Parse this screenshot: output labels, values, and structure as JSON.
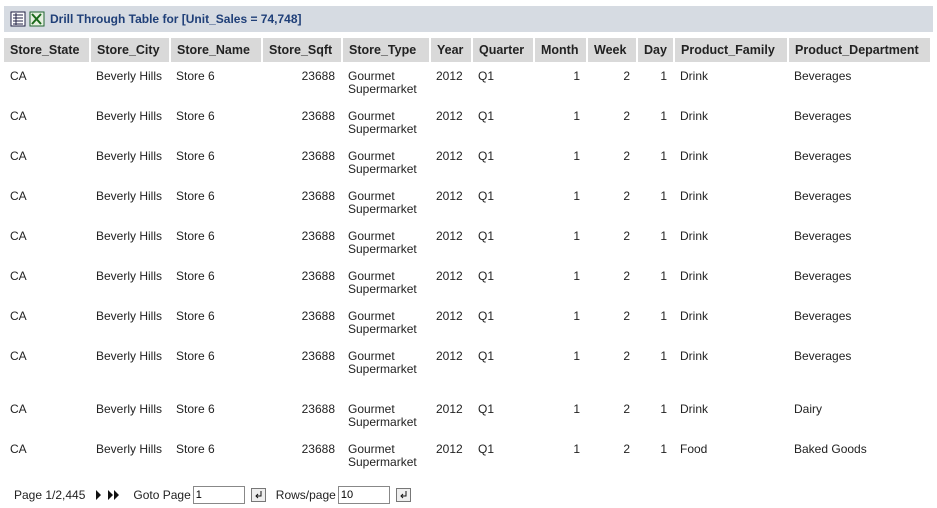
{
  "header": {
    "title": "Drill Through Table for [Unit_Sales = 74,748]"
  },
  "table": {
    "columns": [
      "Store_State",
      "Store_City",
      "Store_Name",
      "Store_Sqft",
      "Store_Type",
      "Year",
      "Quarter",
      "Month",
      "Week",
      "Day",
      "Product_Family",
      "Product_Department"
    ],
    "rows": [
      [
        "CA",
        "Beverly Hills",
        "Store 6",
        23688,
        "Gourmet Supermarket",
        2012,
        "Q1",
        1,
        2,
        1,
        "Drink",
        "Beverages"
      ],
      [
        "CA",
        "Beverly Hills",
        "Store 6",
        23688,
        "Gourmet Supermarket",
        2012,
        "Q1",
        1,
        2,
        1,
        "Drink",
        "Beverages"
      ],
      [
        "CA",
        "Beverly Hills",
        "Store 6",
        23688,
        "Gourmet Supermarket",
        2012,
        "Q1",
        1,
        2,
        1,
        "Drink",
        "Beverages"
      ],
      [
        "CA",
        "Beverly Hills",
        "Store 6",
        23688,
        "Gourmet Supermarket",
        2012,
        "Q1",
        1,
        2,
        1,
        "Drink",
        "Beverages"
      ],
      [
        "CA",
        "Beverly Hills",
        "Store 6",
        23688,
        "Gourmet Supermarket",
        2012,
        "Q1",
        1,
        2,
        1,
        "Drink",
        "Beverages"
      ],
      [
        "CA",
        "Beverly Hills",
        "Store 6",
        23688,
        "Gourmet Supermarket",
        2012,
        "Q1",
        1,
        2,
        1,
        "Drink",
        "Beverages"
      ],
      [
        "CA",
        "Beverly Hills",
        "Store 6",
        23688,
        "Gourmet Supermarket",
        2012,
        "Q1",
        1,
        2,
        1,
        "Drink",
        "Beverages"
      ],
      [
        "CA",
        "Beverly Hills",
        "Store 6",
        23688,
        "Gourmet Supermarket",
        2012,
        "Q1",
        1,
        2,
        1,
        "Drink",
        "Beverages"
      ],
      [
        "CA",
        "Beverly Hills",
        "Store 6",
        23688,
        "Gourmet Supermarket",
        2012,
        "Q1",
        1,
        2,
        1,
        "Drink",
        "Dairy"
      ],
      [
        "CA",
        "Beverly Hills",
        "Store 6",
        23688,
        "Gourmet Supermarket",
        2012,
        "Q1",
        1,
        2,
        1,
        "Food",
        "Baked Goods"
      ]
    ]
  },
  "pagination": {
    "page_label": "Page 1/2,445",
    "goto_label": "Goto Page",
    "goto_value": "1",
    "rows_label": "Rows/page",
    "rows_value": "10"
  }
}
